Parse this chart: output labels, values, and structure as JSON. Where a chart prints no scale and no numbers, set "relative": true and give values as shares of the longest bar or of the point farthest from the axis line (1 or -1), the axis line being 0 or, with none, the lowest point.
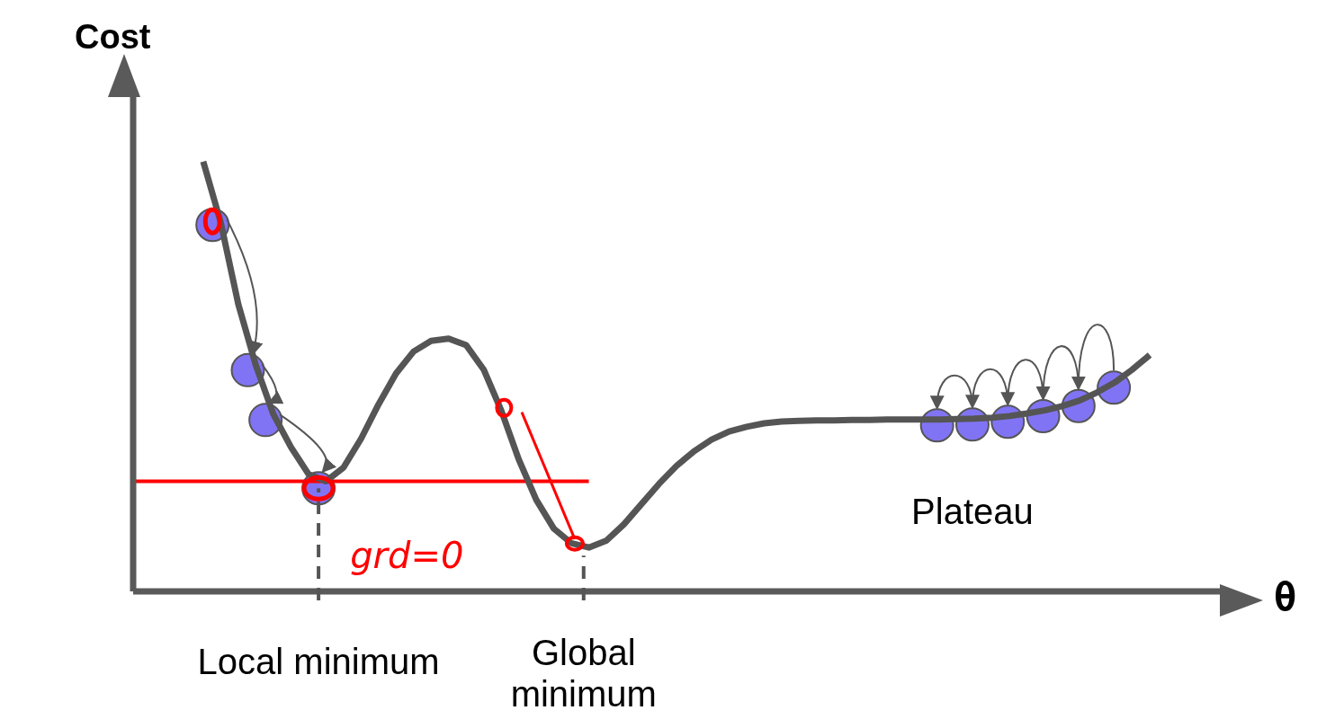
{
  "chart_data": {
    "type": "line",
    "relative": true,
    "xlabel": "θ",
    "ylabel": "Cost",
    "categories": [
      null,
      null,
      null,
      null,
      null,
      null,
      null,
      null,
      null,
      null,
      null,
      null,
      null,
      null,
      null,
      null,
      null,
      null,
      null,
      null,
      null,
      null,
      null,
      null,
      null,
      null,
      null,
      null,
      null,
      null,
      null,
      null,
      null,
      null,
      null,
      null,
      null,
      null,
      null,
      null,
      null,
      null,
      null,
      null,
      null,
      null,
      null,
      null,
      null,
      null,
      null,
      null,
      null,
      null,
      null
    ],
    "series": [
      {
        "color": "#555555",
        "values": [
          1.0,
          0.858,
          0.668,
          0.526,
          0.412,
          0.336,
          0.273,
          0.256,
          0.288,
          0.355,
          0.435,
          0.507,
          0.558,
          0.583,
          0.588,
          0.573,
          0.516,
          0.421,
          0.307,
          0.213,
          0.146,
          0.112,
          0.102,
          0.118,
          0.156,
          0.203,
          0.25,
          0.292,
          0.326,
          0.353,
          0.372,
          0.383,
          0.391,
          0.395,
          0.397,
          0.398,
          0.398,
          0.399,
          0.399,
          0.4,
          0.4,
          0.4,
          0.4,
          0.401,
          0.402,
          0.404,
          0.408,
          0.414,
          0.421,
          0.431,
          0.444,
          0.463,
          0.486,
          0.516,
          0.55
        ]
      }
    ],
    "ref_lines": [
      {
        "axis": "y",
        "value": 0.256,
        "color": "#ff0000",
        "line_style": "solid"
      }
    ],
    "annotations": [
      "Local minimum",
      "Global minimum",
      "Plateau",
      "grd=0"
    ]
  }
}
